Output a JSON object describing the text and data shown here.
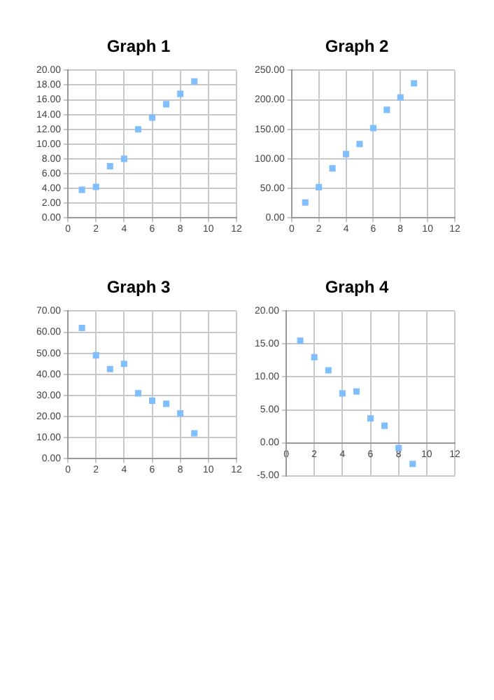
{
  "chart_data": [
    {
      "type": "scatter",
      "title": "Graph 1",
      "x": [
        1,
        2,
        3,
        4,
        5,
        6,
        7,
        8,
        9
      ],
      "values": [
        3.8,
        4.2,
        7.0,
        8.0,
        12.0,
        13.6,
        15.4,
        16.8,
        18.5
      ],
      "color": "#7fbfff",
      "marker": "square",
      "grid": true,
      "xlim": [
        0,
        12
      ],
      "xticks": [
        0,
        2,
        4,
        6,
        8,
        10,
        12
      ],
      "ylim": [
        0,
        20
      ],
      "yticks": [
        {
          "value": 0,
          "label": "0.00"
        },
        {
          "value": 2,
          "label": "2.00"
        },
        {
          "value": 4,
          "label": "4.00"
        },
        {
          "value": 6,
          "label": "6.00"
        },
        {
          "value": 8,
          "label": "8.00"
        },
        {
          "value": 10,
          "label": "10.00"
        },
        {
          "value": 12,
          "label": "12.00"
        },
        {
          "value": 14,
          "label": "14.00"
        },
        {
          "value": 16,
          "label": "16.00"
        },
        {
          "value": 18,
          "label": "18.00"
        },
        {
          "value": 20,
          "label": "20.00"
        }
      ]
    },
    {
      "type": "scatter",
      "title": "Graph 2",
      "x": [
        1,
        2,
        3,
        4,
        5,
        6,
        7,
        8,
        9
      ],
      "values": [
        26,
        52,
        84,
        108,
        125,
        152,
        183,
        204,
        228
      ],
      "color": "#7fbfff",
      "marker": "square",
      "grid": true,
      "xlim": [
        0,
        12
      ],
      "xticks": [
        0,
        2,
        4,
        6,
        8,
        10,
        12
      ],
      "ylim": [
        0,
        250
      ],
      "yticks": [
        {
          "value": 0,
          "label": "0.00"
        },
        {
          "value": 50,
          "label": "50.00"
        },
        {
          "value": 100,
          "label": "100.00"
        },
        {
          "value": 150,
          "label": "150.00"
        },
        {
          "value": 200,
          "label": "200.00"
        },
        {
          "value": 250,
          "label": "250.00"
        }
      ]
    },
    {
      "type": "scatter",
      "title": "Graph 3",
      "x": [
        1,
        2,
        3,
        4,
        5,
        6,
        7,
        8,
        9
      ],
      "values": [
        62,
        49,
        42.5,
        45,
        31,
        27.5,
        26,
        21.5,
        12
      ],
      "color": "#7fbfff",
      "marker": "square",
      "grid": true,
      "xlim": [
        0,
        12
      ],
      "xticks": [
        0,
        2,
        4,
        6,
        8,
        10,
        12
      ],
      "ylim": [
        0,
        70
      ],
      "yticks": [
        {
          "value": 0,
          "label": "0.00"
        },
        {
          "value": 10,
          "label": "10.00"
        },
        {
          "value": 20,
          "label": "20.00"
        },
        {
          "value": 30,
          "label": "30.00"
        },
        {
          "value": 40,
          "label": "40.00"
        },
        {
          "value": 50,
          "label": "50.00"
        },
        {
          "value": 60,
          "label": "60.00"
        },
        {
          "value": 70,
          "label": "70.00"
        }
      ]
    },
    {
      "type": "scatter",
      "title": "Graph 4",
      "x": [
        1,
        2,
        3,
        4,
        5,
        6,
        7,
        8,
        9
      ],
      "values": [
        15.5,
        13,
        11,
        7.5,
        7.8,
        3.7,
        2.6,
        -0.8,
        -3.2
      ],
      "color": "#7fbfff",
      "marker": "square",
      "grid": true,
      "xlim": [
        0,
        12
      ],
      "xticks": [
        0,
        2,
        4,
        6,
        8,
        10,
        12
      ],
      "ylim": [
        -5,
        20
      ],
      "yticks": [
        {
          "value": -5,
          "label": "-5.00"
        },
        {
          "value": 0,
          "label": "0.00"
        },
        {
          "value": 5,
          "label": "5.00"
        },
        {
          "value": 10,
          "label": "10.00"
        },
        {
          "value": 15,
          "label": "15.00"
        },
        {
          "value": 20,
          "label": "20.00"
        }
      ]
    }
  ]
}
